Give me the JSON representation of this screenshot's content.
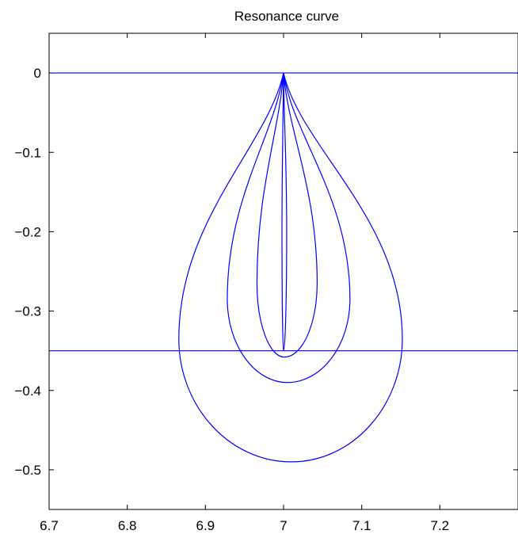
{
  "chart_data": {
    "type": "line",
    "title": "Resonance curve",
    "xlabel": "",
    "ylabel": "",
    "xlim": [
      6.7,
      7.3
    ],
    "ylim": [
      -0.55,
      0.05
    ],
    "xticks": [
      6.7,
      6.8,
      6.9,
      7.0,
      7.1,
      7.2
    ],
    "xtick_labels": [
      "6.7",
      "6.8",
      "6.9",
      "7",
      "7.1",
      "7.2"
    ],
    "yticks": [
      0,
      -0.1,
      -0.2,
      -0.3,
      -0.4,
      -0.5
    ],
    "ytick_labels": [
      "0",
      "−0.1",
      "−0.2",
      "−0.3",
      "−0.4",
      "−0.5"
    ],
    "grid": false,
    "line_color": "#0000ff",
    "horizontal_lines": [
      0,
      -0.35
    ],
    "loops": [
      {
        "x_left": 6.866,
        "x_right": 7.152,
        "y_widest": -0.335,
        "y_bottom": -0.49,
        "x_bottom": 7.01
      },
      {
        "x_left": 6.928,
        "x_right": 7.085,
        "y_widest": -0.285,
        "y_bottom": -0.39,
        "x_bottom": 7.005
      },
      {
        "x_left": 6.966,
        "x_right": 7.043,
        "y_widest": -0.265,
        "y_bottom": -0.358,
        "x_bottom": 7.001
      },
      {
        "x_left": 6.998,
        "x_right": 7.004,
        "y_widest": -0.2,
        "y_bottom": -0.35,
        "x_bottom": 7.0
      }
    ]
  }
}
